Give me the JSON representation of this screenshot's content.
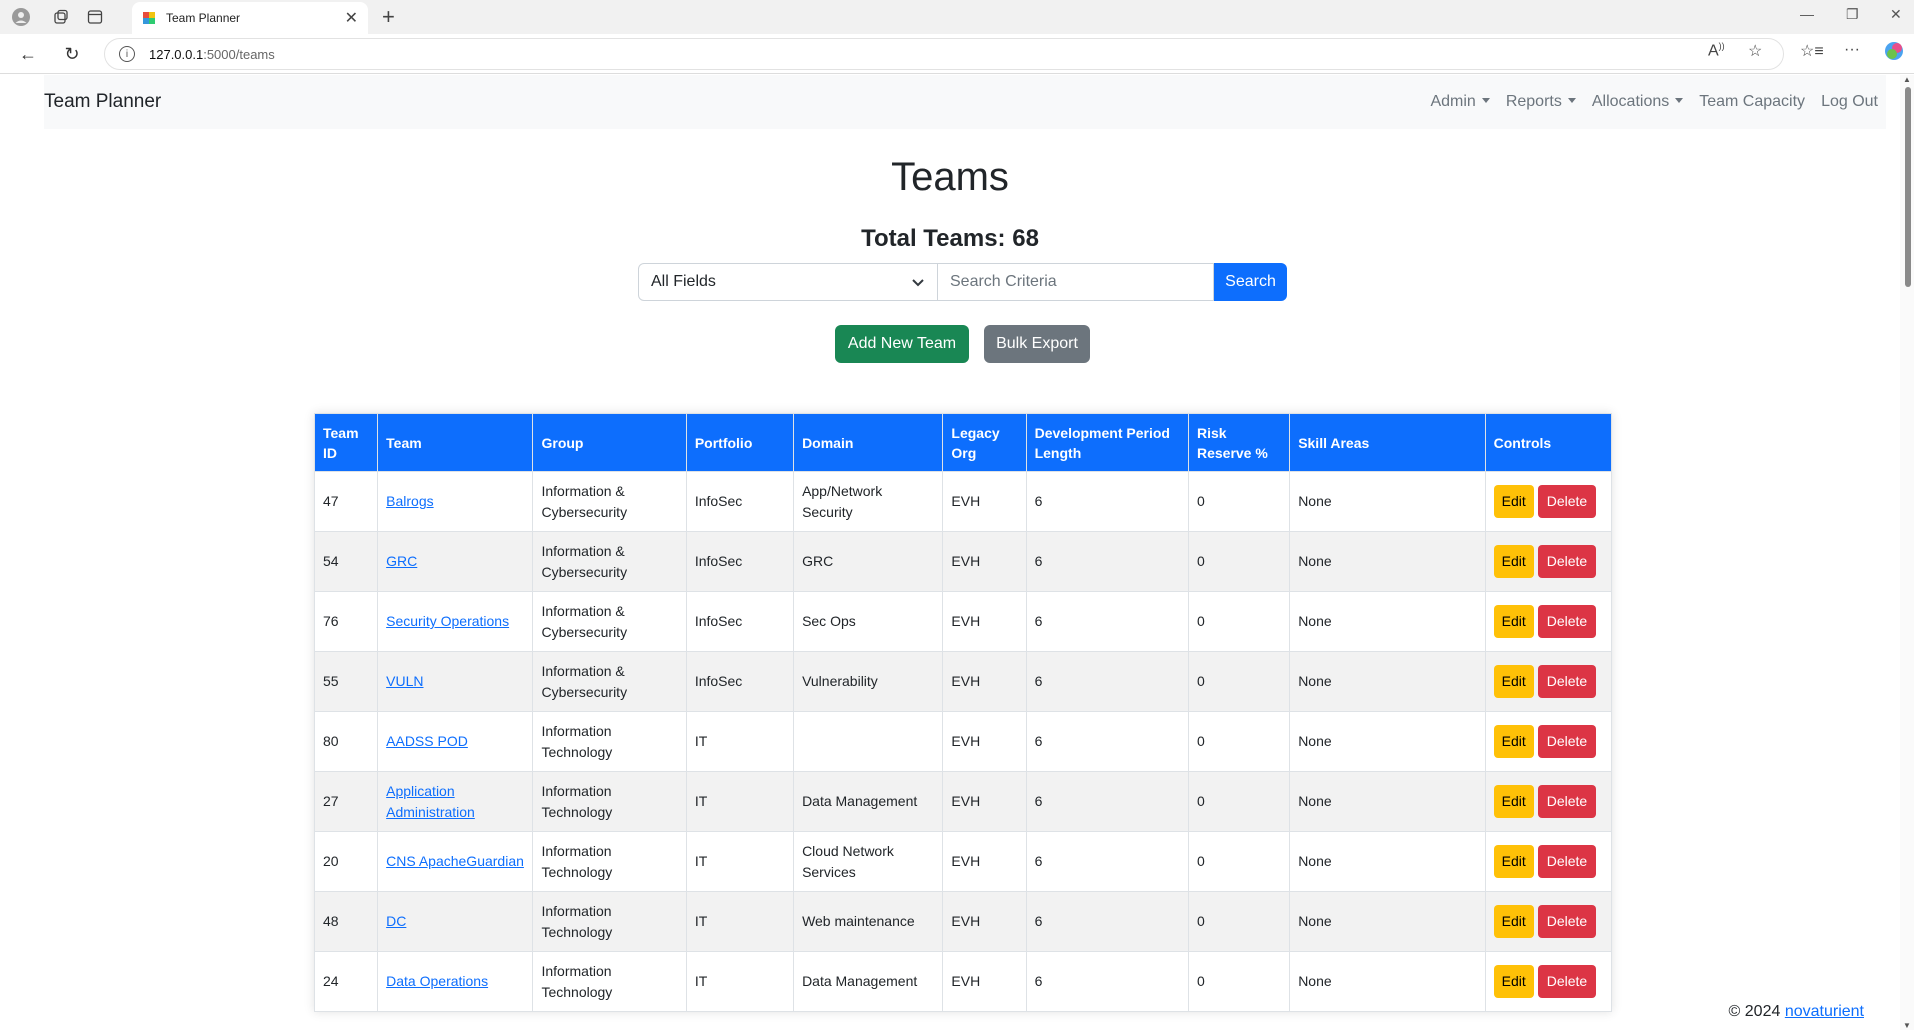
{
  "browser": {
    "tab_title": "Team Planner",
    "url_host": "127.0.0.1",
    "url_path": ":5000/teams"
  },
  "nav": {
    "brand": "Team Planner",
    "links": [
      "Admin",
      "Reports",
      "Allocations",
      "Team Capacity",
      "Log Out"
    ]
  },
  "page": {
    "title": "Teams",
    "total_label": "Total Teams: 68"
  },
  "search": {
    "field_selected": "All Fields",
    "placeholder": "Search Criteria",
    "button": "Search"
  },
  "actions": {
    "add": "Add New Team",
    "export": "Bulk Export"
  },
  "table": {
    "headers": [
      "Team ID",
      "Team",
      "Group",
      "Portfolio",
      "Domain",
      "Legacy Org",
      "Development Period Length",
      "Risk Reserve %",
      "Skill Areas",
      "Controls"
    ],
    "rows": [
      {
        "id": "47",
        "team": "Balrogs",
        "group": "Information & Cybersecurity",
        "portfolio": "InfoSec",
        "domain": "App/Network Security",
        "legacy": "EVH",
        "dev": "6",
        "risk": "0",
        "skills": "None"
      },
      {
        "id": "54",
        "team": "GRC",
        "group": "Information & Cybersecurity",
        "portfolio": "InfoSec",
        "domain": "GRC",
        "legacy": "EVH",
        "dev": "6",
        "risk": "0",
        "skills": "None"
      },
      {
        "id": "76",
        "team": "Security Operations",
        "group": "Information & Cybersecurity",
        "portfolio": "InfoSec",
        "domain": "Sec Ops",
        "legacy": "EVH",
        "dev": "6",
        "risk": "0",
        "skills": "None"
      },
      {
        "id": "55",
        "team": "VULN",
        "group": "Information & Cybersecurity",
        "portfolio": "InfoSec",
        "domain": "Vulnerability",
        "legacy": "EVH",
        "dev": "6",
        "risk": "0",
        "skills": "None"
      },
      {
        "id": "80",
        "team": "AADSS POD",
        "group": "Information Technology",
        "portfolio": "IT",
        "domain": "",
        "legacy": "EVH",
        "dev": "6",
        "risk": "0",
        "skills": "None"
      },
      {
        "id": "27",
        "team": "Application Administration",
        "group": "Information Technology",
        "portfolio": "IT",
        "domain": "Data Management",
        "legacy": "EVH",
        "dev": "6",
        "risk": "0",
        "skills": "None"
      },
      {
        "id": "20",
        "team": "CNS ApacheGuardian",
        "group": "Information Technology",
        "portfolio": "IT",
        "domain": "Cloud Network Services",
        "legacy": "EVH",
        "dev": "6",
        "risk": "0",
        "skills": "None"
      },
      {
        "id": "48",
        "team": "DC",
        "group": "Information Technology",
        "portfolio": "IT",
        "domain": "Web maintenance",
        "legacy": "EVH",
        "dev": "6",
        "risk": "0",
        "skills": "None"
      },
      {
        "id": "24",
        "team": "Data Operations",
        "group": "Information Technology",
        "portfolio": "IT",
        "domain": "Data Management",
        "legacy": "EVH",
        "dev": "6",
        "risk": "0",
        "skills": "None"
      }
    ],
    "edit_label": "Edit",
    "delete_label": "Delete"
  },
  "footer": {
    "copyright": "© 2024",
    "link": "novaturient"
  }
}
